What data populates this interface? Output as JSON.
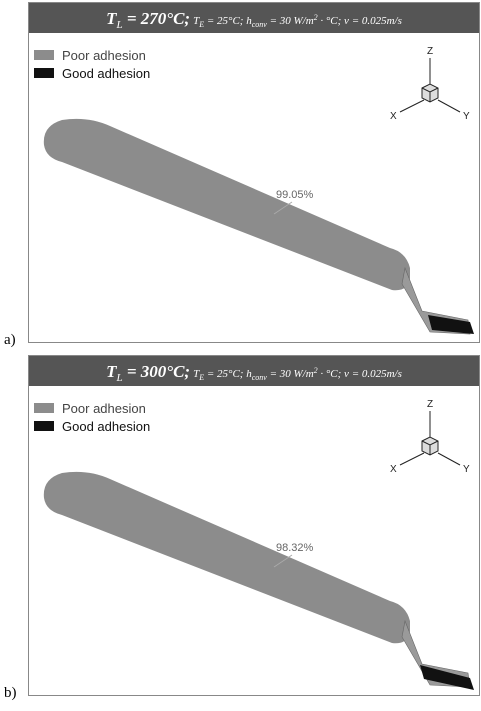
{
  "panels": [
    {
      "label": "a)",
      "header": [
        "T",
        "L",
        " = 270°C;",
        "T",
        "E",
        " = 25°C; h",
        "conv",
        " = 30 W/m",
        "2",
        " · °C; v = 0.025m/s"
      ],
      "legend": [
        "Poor adhesion",
        "Good adhesion"
      ],
      "axes": [
        "Z",
        "X",
        "Y"
      ],
      "annotation": "99.05%"
    },
    {
      "label": "b)",
      "header": [
        "T",
        "L",
        " = 300°C;",
        "T",
        "E",
        " = 25°C; h",
        "conv",
        " = 30 W/m",
        "2",
        " · °C; v = 0.025m/s"
      ],
      "legend": [
        "Poor adhesion",
        "Good adhesion"
      ],
      "axes": [
        "Z",
        "X",
        "Y"
      ],
      "annotation": "98.32%"
    }
  ]
}
